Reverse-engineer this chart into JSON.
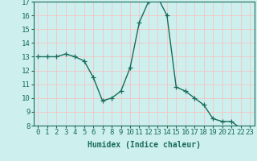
{
  "x": [
    0,
    1,
    2,
    3,
    4,
    5,
    6,
    7,
    8,
    9,
    10,
    11,
    12,
    13,
    14,
    15,
    16,
    17,
    18,
    19,
    20,
    21,
    22,
    23
  ],
  "y": [
    13.0,
    13.0,
    13.0,
    13.2,
    13.0,
    12.7,
    11.5,
    9.8,
    10.0,
    10.5,
    12.2,
    15.5,
    17.0,
    17.3,
    16.0,
    10.8,
    10.5,
    10.0,
    9.5,
    8.5,
    8.3,
    8.3,
    7.8,
    7.5
  ],
  "ylim": [
    8,
    17
  ],
  "yticks": [
    8,
    9,
    10,
    11,
    12,
    13,
    14,
    15,
    16,
    17
  ],
  "xlabel": "Humidex (Indice chaleur)",
  "line_color": "#1a6b5a",
  "marker": "+",
  "bg_color": "#cdf0ee",
  "grid_color": "#f0c8c8",
  "axis_color": "#1a6b5a",
  "xlabel_fontsize": 7,
  "tick_fontsize": 6.5,
  "linewidth": 1.0,
  "markersize": 4,
  "markeredgewidth": 0.9
}
